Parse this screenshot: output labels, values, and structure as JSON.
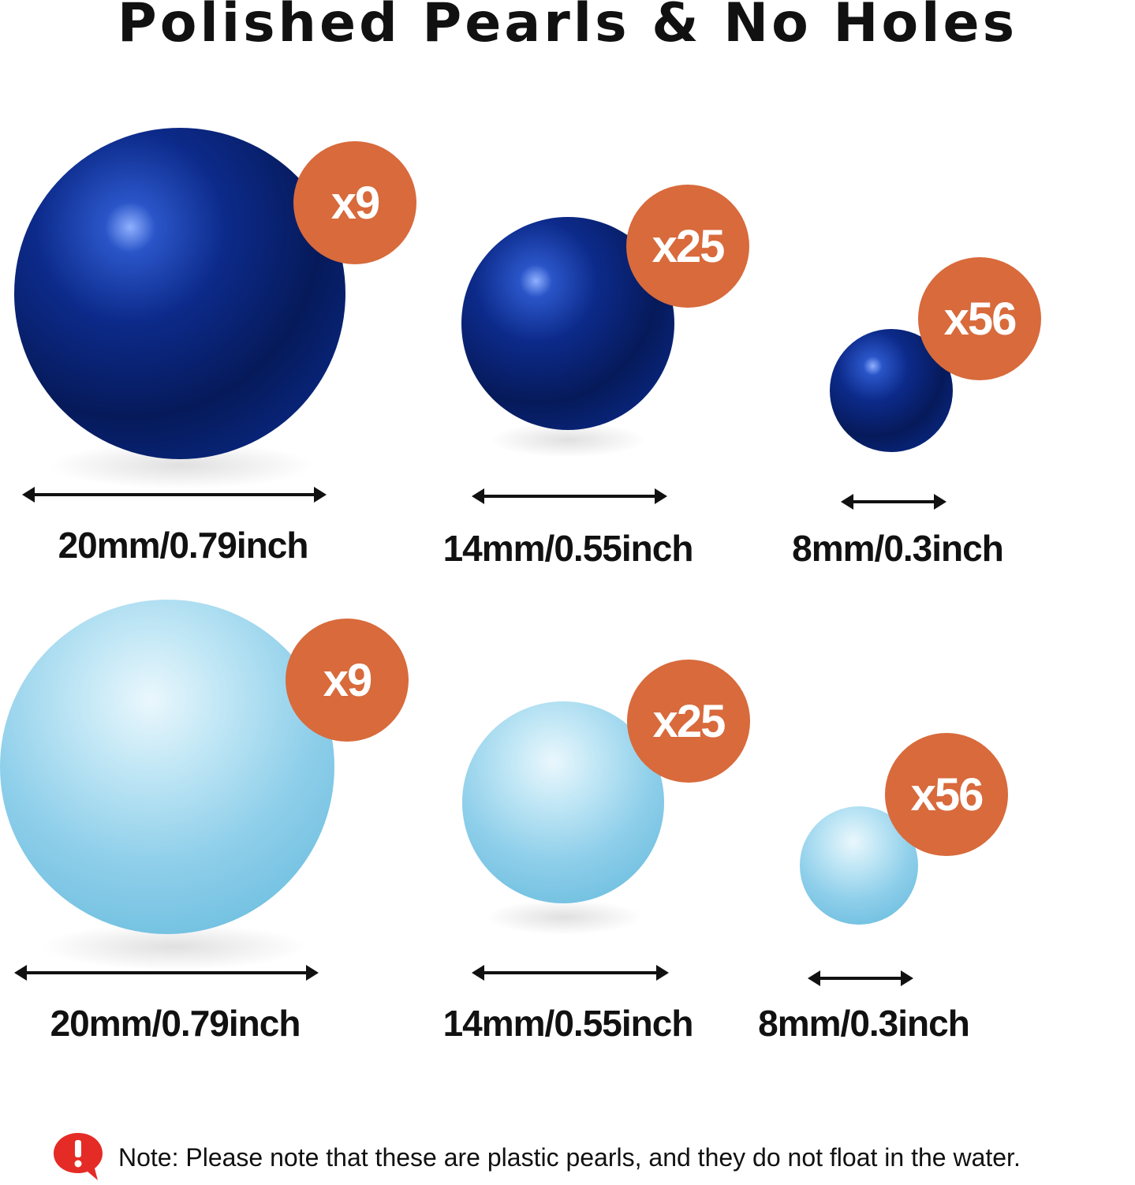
{
  "title": "Polished Pearls & No Holes",
  "colors": {
    "badge": "#d86a3c",
    "dark_pearl": "#0c2a8a",
    "light_pearl": "#8fcfea",
    "note_icon": "#e52b25"
  },
  "rows": [
    {
      "color": "navy blue",
      "items": [
        {
          "count": "x9",
          "size": "20mm/0.79inch"
        },
        {
          "count": "x25",
          "size": "14mm/0.55inch"
        },
        {
          "count": "x56",
          "size": "8mm/0.3inch"
        }
      ]
    },
    {
      "color": "light blue",
      "items": [
        {
          "count": "x9",
          "size": "20mm/0.79inch"
        },
        {
          "count": "x25",
          "size": "14mm/0.55inch"
        },
        {
          "count": "x56",
          "size": "8mm/0.3inch"
        }
      ]
    }
  ],
  "note": {
    "icon": "exclamation-speech-bubble-icon",
    "text": "Note: Please note that these are plastic pearls, and they do not float in the water."
  }
}
